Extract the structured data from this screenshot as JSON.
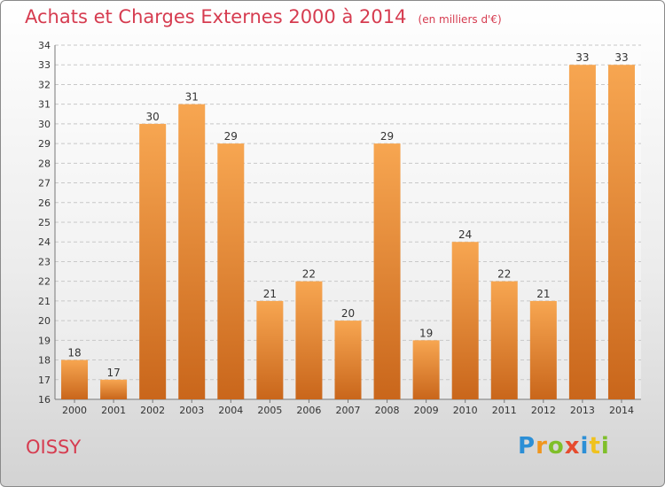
{
  "title": "Achats et Charges Externes 2000 à 2014",
  "unit_label": "(en milliers d'€)",
  "commune": "OISSY",
  "logo": {
    "letters": [
      "P",
      "r",
      "o",
      "x",
      "i",
      "t",
      "i"
    ],
    "colors": [
      "#2c8fd6",
      "#f0961e",
      "#7fbf2a",
      "#e64b2e",
      "#2c8fd6",
      "#f0c21e",
      "#7fbf2a"
    ]
  },
  "colors": {
    "bar_top": "#f7a651",
    "bar_bottom": "#c9661b",
    "title": "#d63c50",
    "grid": "#c8c8c8",
    "axis": "#777777"
  },
  "chart_data": {
    "type": "bar",
    "categories": [
      "2000",
      "2001",
      "2002",
      "2003",
      "2004",
      "2005",
      "2006",
      "2007",
      "2008",
      "2009",
      "2010",
      "2011",
      "2012",
      "2013",
      "2014"
    ],
    "values": [
      18,
      17,
      30,
      31,
      29,
      21,
      22,
      20,
      29,
      19,
      24,
      22,
      21,
      33,
      33
    ],
    "title": "Achats et Charges Externes 2000 à 2014",
    "xlabel": "",
    "ylabel": "",
    "ylim": [
      16,
      34
    ],
    "yticks": [
      16,
      17,
      18,
      19,
      20,
      21,
      22,
      23,
      24,
      25,
      26,
      27,
      28,
      29,
      30,
      31,
      32,
      33,
      34
    ],
    "grid": true,
    "data_labels": true
  }
}
